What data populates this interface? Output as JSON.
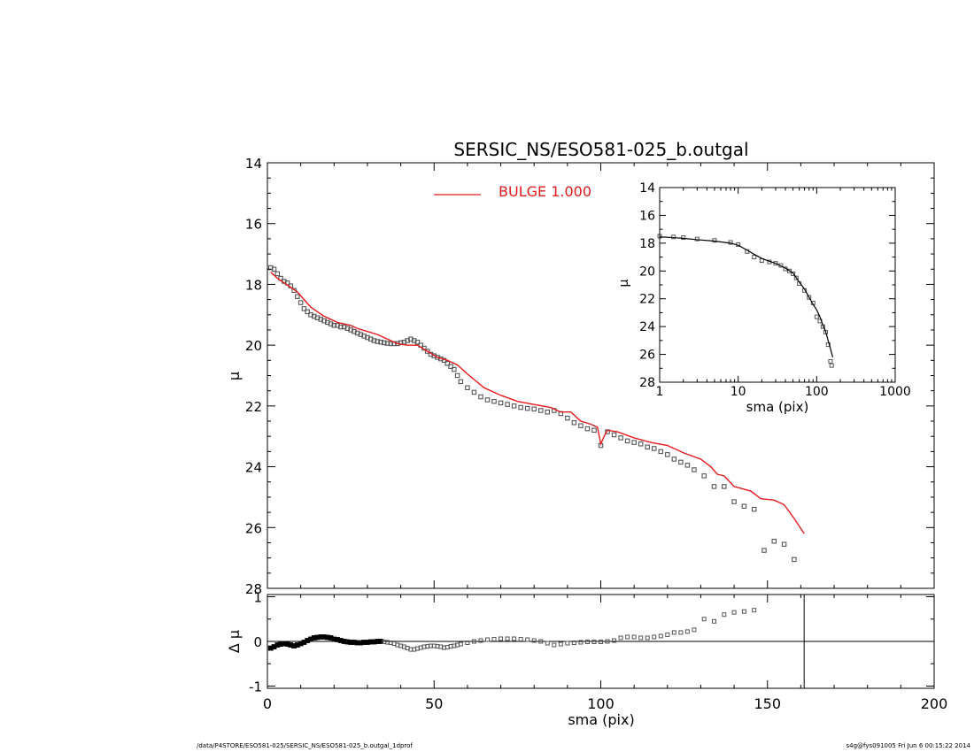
{
  "footer": {
    "path": "/data/P4STORE/ESO581-025/SERSIC_NS/ESO581-025_b.outgal_1dprof",
    "stamp": "s4g@fys091005  Fri Jun  6 00:15:22 2014"
  },
  "colors": {
    "model": "#e41a1c",
    "data": "#555555",
    "axes": "#000000",
    "background": "#ffffff"
  },
  "chart_data": [
    {
      "id": "main",
      "type": "scatter",
      "title": "SERSIC_NS/ESO581-025_b.outgal",
      "xlabel": "",
      "ylabel": "μ",
      "xlim": [
        0,
        200
      ],
      "ylim": [
        28,
        14
      ],
      "y_inverted": true,
      "xticks": [
        0,
        50,
        100,
        150,
        200
      ],
      "xticklabels": [
        "",
        "",
        "",
        "",
        ""
      ],
      "yticks": [
        14,
        16,
        18,
        20,
        22,
        24,
        26,
        28
      ],
      "yticklabels": [
        "14",
        "16",
        "18",
        "20",
        "22",
        "24",
        "26",
        "28"
      ],
      "legend": {
        "position": "top",
        "label": "BULGE  1.000",
        "color": "#e41a1c"
      },
      "series": [
        {
          "name": "BULGE  1.000",
          "kind": "line",
          "color": "#e41a1c",
          "x": [
            1,
            3,
            5,
            7,
            9,
            11,
            13,
            15,
            17,
            19,
            21,
            23,
            25,
            27,
            30,
            33,
            36,
            39,
            42,
            45,
            48,
            51,
            54,
            57,
            60,
            65,
            70,
            75,
            80,
            85,
            88,
            91,
            94,
            97,
            99,
            100,
            101,
            102,
            105,
            110,
            115,
            120,
            125,
            130,
            133,
            135,
            137,
            140,
            145,
            148,
            152,
            155,
            158,
            161
          ],
          "y": [
            17.6,
            17.8,
            17.95,
            18.1,
            18.25,
            18.5,
            18.75,
            18.9,
            19.05,
            19.15,
            19.25,
            19.3,
            19.35,
            19.45,
            19.55,
            19.65,
            19.8,
            19.95,
            20.0,
            20.0,
            20.2,
            20.4,
            20.5,
            20.65,
            20.95,
            21.4,
            21.65,
            21.85,
            21.95,
            22.05,
            22.2,
            22.2,
            22.5,
            22.6,
            22.7,
            23.25,
            23.0,
            22.8,
            22.85,
            23.05,
            23.2,
            23.3,
            23.55,
            23.75,
            24.0,
            24.25,
            24.3,
            24.65,
            24.8,
            25.05,
            25.1,
            25.25,
            25.7,
            26.2
          ]
        },
        {
          "name": "",
          "kind": "markers",
          "color": "#555555",
          "x": [
            1,
            2,
            3,
            4,
            5,
            6,
            7,
            8,
            9,
            10,
            11,
            12,
            13,
            14,
            15,
            16,
            17,
            18,
            19,
            20,
            21,
            22,
            23,
            24,
            25,
            26,
            27,
            28,
            29,
            30,
            31,
            32,
            33,
            34,
            35,
            36,
            37,
            38,
            39,
            40,
            41,
            42,
            43,
            44,
            45,
            46,
            47,
            48,
            49,
            50,
            51,
            52,
            53,
            54,
            55,
            56,
            57,
            58,
            60,
            62,
            64,
            66,
            68,
            70,
            72,
            74,
            76,
            78,
            80,
            82,
            84,
            86,
            88,
            90,
            92,
            94,
            96,
            98,
            100,
            102,
            104,
            106,
            108,
            110,
            112,
            114,
            116,
            118,
            120,
            122,
            124,
            126,
            128,
            131,
            134,
            137,
            140,
            143,
            146,
            149,
            152,
            155,
            158
          ],
          "y": [
            17.45,
            17.5,
            17.65,
            17.8,
            17.9,
            17.95,
            18.05,
            18.2,
            18.4,
            18.6,
            18.8,
            18.9,
            19.0,
            19.05,
            19.1,
            19.15,
            19.2,
            19.25,
            19.3,
            19.35,
            19.35,
            19.4,
            19.4,
            19.45,
            19.5,
            19.55,
            19.6,
            19.65,
            19.7,
            19.75,
            19.8,
            19.85,
            19.88,
            19.9,
            19.92,
            19.94,
            19.95,
            19.95,
            19.95,
            19.92,
            19.9,
            19.85,
            19.8,
            19.85,
            19.9,
            20.0,
            20.1,
            20.2,
            20.3,
            20.35,
            20.4,
            20.45,
            20.5,
            20.6,
            20.7,
            20.8,
            21.0,
            21.2,
            21.4,
            21.55,
            21.7,
            21.8,
            21.85,
            21.9,
            21.95,
            22.0,
            22.05,
            22.08,
            22.1,
            22.15,
            22.2,
            22.15,
            22.25,
            22.4,
            22.55,
            22.65,
            22.75,
            22.8,
            23.3,
            22.85,
            22.95,
            23.05,
            23.15,
            23.2,
            23.25,
            23.35,
            23.4,
            23.5,
            23.6,
            23.75,
            23.85,
            23.95,
            24.1,
            24.3,
            24.65,
            24.65,
            25.15,
            25.3,
            25.4,
            26.75,
            26.45,
            26.55,
            27.05
          ]
        }
      ]
    },
    {
      "id": "inset",
      "type": "scatter",
      "title": "",
      "xlabel": "sma (pix)",
      "ylabel": "μ",
      "xscale": "log",
      "xlim": [
        1,
        1000
      ],
      "ylim": [
        28,
        14
      ],
      "y_inverted": true,
      "xticks": [
        1,
        10,
        100,
        1000
      ],
      "xticklabels": [
        "1",
        "10",
        "100",
        "1000"
      ],
      "yticks": [
        14,
        16,
        18,
        20,
        22,
        24,
        26,
        28
      ],
      "yticklabels": [
        "14",
        "16",
        "18",
        "20",
        "22",
        "24",
        "26",
        "28"
      ],
      "series": [
        {
          "name": "",
          "kind": "line",
          "color": "#000000",
          "x": [
            1,
            1.5,
            2,
            3,
            5,
            8,
            10,
            13,
            16,
            20,
            25,
            30,
            40,
            50,
            60,
            70,
            80,
            90,
            100,
            110,
            120,
            130,
            140,
            150,
            160
          ],
          "y": [
            17.55,
            17.6,
            17.65,
            17.75,
            17.85,
            18.0,
            18.15,
            18.5,
            18.8,
            19.1,
            19.3,
            19.45,
            19.8,
            20.15,
            20.8,
            21.3,
            21.9,
            22.4,
            22.8,
            23.3,
            23.9,
            24.35,
            25.0,
            25.6,
            26.2
          ]
        },
        {
          "name": "",
          "kind": "markers",
          "color": "#555555",
          "x": [
            1,
            1.5,
            2,
            3,
            5,
            8,
            10,
            13,
            16,
            20,
            25,
            30,
            35,
            40,
            45,
            50,
            55,
            60,
            70,
            80,
            90,
            100,
            110,
            120,
            130,
            140,
            150,
            155
          ],
          "y": [
            17.5,
            17.55,
            17.6,
            17.7,
            17.8,
            17.95,
            18.1,
            18.6,
            19.0,
            19.25,
            19.35,
            19.45,
            19.6,
            19.85,
            20.0,
            20.2,
            20.5,
            20.9,
            21.4,
            21.9,
            22.3,
            23.3,
            23.6,
            24.0,
            24.4,
            25.3,
            26.5,
            26.8
          ]
        }
      ]
    },
    {
      "id": "residual",
      "type": "scatter",
      "title": "",
      "xlabel": "sma (pix)",
      "ylabel": "Δ μ",
      "xlim": [
        0,
        200
      ],
      "ylim": [
        -1.05,
        1.05
      ],
      "xticks": [
        0,
        50,
        100,
        150,
        200
      ],
      "xticklabels": [
        "0",
        "50",
        "100",
        "150",
        "200"
      ],
      "yticks": [
        -1,
        0,
        1
      ],
      "yticklabels": [
        "-1",
        "0",
        "1"
      ],
      "zero_line": true,
      "vline_x": 161,
      "series": [
        {
          "name": "",
          "kind": "markers",
          "color": "#555555",
          "x": [
            1,
            2,
            3,
            4,
            5,
            6,
            7,
            8,
            9,
            10,
            11,
            12,
            13,
            14,
            15,
            16,
            17,
            18,
            19,
            20,
            21,
            22,
            23,
            24,
            25,
            26,
            27,
            28,
            29,
            30,
            31,
            32,
            33,
            34,
            35,
            36,
            37,
            38,
            39,
            40,
            41,
            42,
            43,
            44,
            45,
            46,
            47,
            48,
            49,
            50,
            51,
            52,
            53,
            54,
            55,
            56,
            57,
            58,
            60,
            62,
            64,
            66,
            68,
            70,
            72,
            74,
            76,
            78,
            80,
            82,
            84,
            86,
            88,
            90,
            92,
            94,
            96,
            98,
            100,
            102,
            104,
            106,
            108,
            110,
            112,
            114,
            116,
            118,
            120,
            122,
            124,
            126,
            128,
            131,
            134,
            137,
            140,
            143,
            146
          ],
          "y": [
            -0.15,
            -0.12,
            -0.08,
            -0.06,
            -0.05,
            -0.06,
            -0.08,
            -0.1,
            -0.08,
            -0.05,
            -0.02,
            0.02,
            0.05,
            0.08,
            0.09,
            0.1,
            0.1,
            0.09,
            0.08,
            0.05,
            0.04,
            0.02,
            0.0,
            -0.01,
            -0.02,
            -0.02,
            -0.03,
            -0.03,
            -0.02,
            -0.02,
            -0.01,
            -0.01,
            0.0,
            0.0,
            -0.01,
            -0.02,
            -0.03,
            -0.05,
            -0.08,
            -0.1,
            -0.12,
            -0.15,
            -0.18,
            -0.18,
            -0.16,
            -0.14,
            -0.12,
            -0.11,
            -0.1,
            -0.1,
            -0.11,
            -0.12,
            -0.14,
            -0.13,
            -0.11,
            -0.1,
            -0.08,
            -0.06,
            -0.03,
            0.0,
            0.02,
            0.04,
            0.05,
            0.06,
            0.06,
            0.06,
            0.05,
            0.04,
            0.02,
            0.0,
            -0.04,
            -0.08,
            -0.06,
            -0.04,
            -0.03,
            -0.02,
            -0.01,
            -0.01,
            -0.01,
            0.0,
            0.02,
            0.08,
            0.1,
            0.1,
            0.08,
            0.08,
            0.1,
            0.12,
            0.15,
            0.2,
            0.2,
            0.22,
            0.26,
            0.5,
            0.45,
            0.6,
            0.65,
            0.67,
            0.7
          ]
        }
      ]
    }
  ]
}
